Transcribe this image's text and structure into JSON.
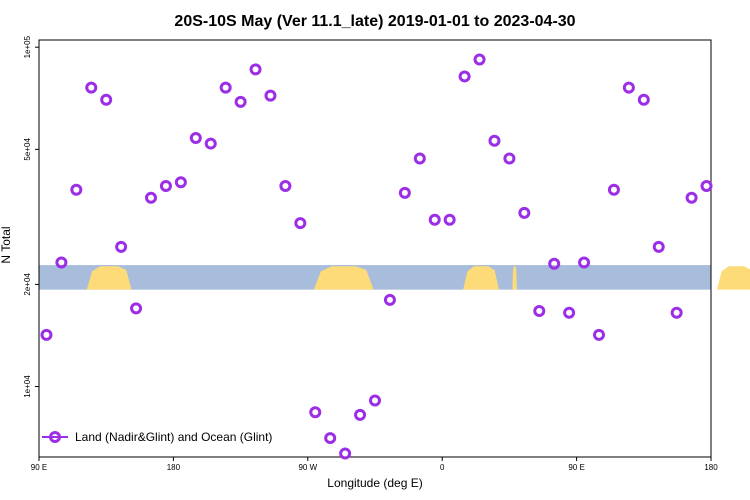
{
  "chart_data": {
    "type": "scatter",
    "title": "20S-10S May (Ver 11.1_late)   2019-01-01 to 2023-04-30",
    "xlabel": "Longitude (deg E)",
    "ylabel": "N Total",
    "x_ticks": [
      {
        "value": 90,
        "label": "90 E"
      },
      {
        "value": 180,
        "label": "180"
      },
      {
        "value": 270,
        "label": "90 W"
      },
      {
        "value": 360,
        "label": "0"
      },
      {
        "value": 450,
        "label": "90 E"
      },
      {
        "value": 540,
        "label": "180"
      }
    ],
    "y_ticks": [
      {
        "value": 10000,
        "label": "1e+04"
      },
      {
        "value": 20000,
        "label": "2e+04"
      },
      {
        "value": 50000,
        "label": "5e+04"
      },
      {
        "value": 100000,
        "label": "1e+05"
      }
    ],
    "xlim": [
      90,
      540
    ],
    "ylim": [
      6200,
      105000
    ],
    "yscale": "log",
    "legend_position": "bottom-left",
    "land_band": {
      "ocean_color": "#a8bcdc",
      "land_color": "#fddb78",
      "y_range": [
        19300,
        22800
      ],
      "land_spans": [
        [
          122,
          152
        ],
        [
          274,
          314
        ],
        [
          374,
          398
        ],
        [
          407,
          410
        ],
        [
          544,
          570
        ]
      ]
    },
    "series": [
      {
        "name": "Land (Nadir&Glint) and Ocean (Glint)",
        "color": "#9b2ee6",
        "points": [
          [
            95,
            14200
          ],
          [
            105,
            23200
          ],
          [
            115,
            38000
          ],
          [
            125,
            76000
          ],
          [
            135,
            70000
          ],
          [
            145,
            25800
          ],
          [
            155,
            17000
          ],
          [
            165,
            36000
          ],
          [
            175,
            39000
          ],
          [
            185,
            40000
          ],
          [
            195,
            54000
          ],
          [
            205,
            52000
          ],
          [
            215,
            76000
          ],
          [
            225,
            69000
          ],
          [
            235,
            86000
          ],
          [
            245,
            72000
          ],
          [
            255,
            39000
          ],
          [
            265,
            30300
          ],
          [
            275,
            8400
          ],
          [
            285,
            7050
          ],
          [
            295,
            6350
          ],
          [
            305,
            8250
          ],
          [
            315,
            9100
          ],
          [
            325,
            18000
          ],
          [
            335,
            37200
          ],
          [
            345,
            47000
          ],
          [
            355,
            31000
          ],
          [
            365,
            31000
          ],
          [
            375,
            82000
          ],
          [
            385,
            92000
          ],
          [
            395,
            53000
          ],
          [
            405,
            47000
          ],
          [
            415,
            32500
          ],
          [
            425,
            16700
          ],
          [
            435,
            23000
          ],
          [
            445,
            16500
          ],
          [
            455,
            23200
          ],
          [
            465,
            14200
          ],
          [
            475,
            38000
          ],
          [
            485,
            76000
          ],
          [
            495,
            70000
          ],
          [
            505,
            25800
          ],
          [
            517,
            16500
          ],
          [
            527,
            36000
          ],
          [
            537,
            39000
          ]
        ]
      }
    ]
  }
}
